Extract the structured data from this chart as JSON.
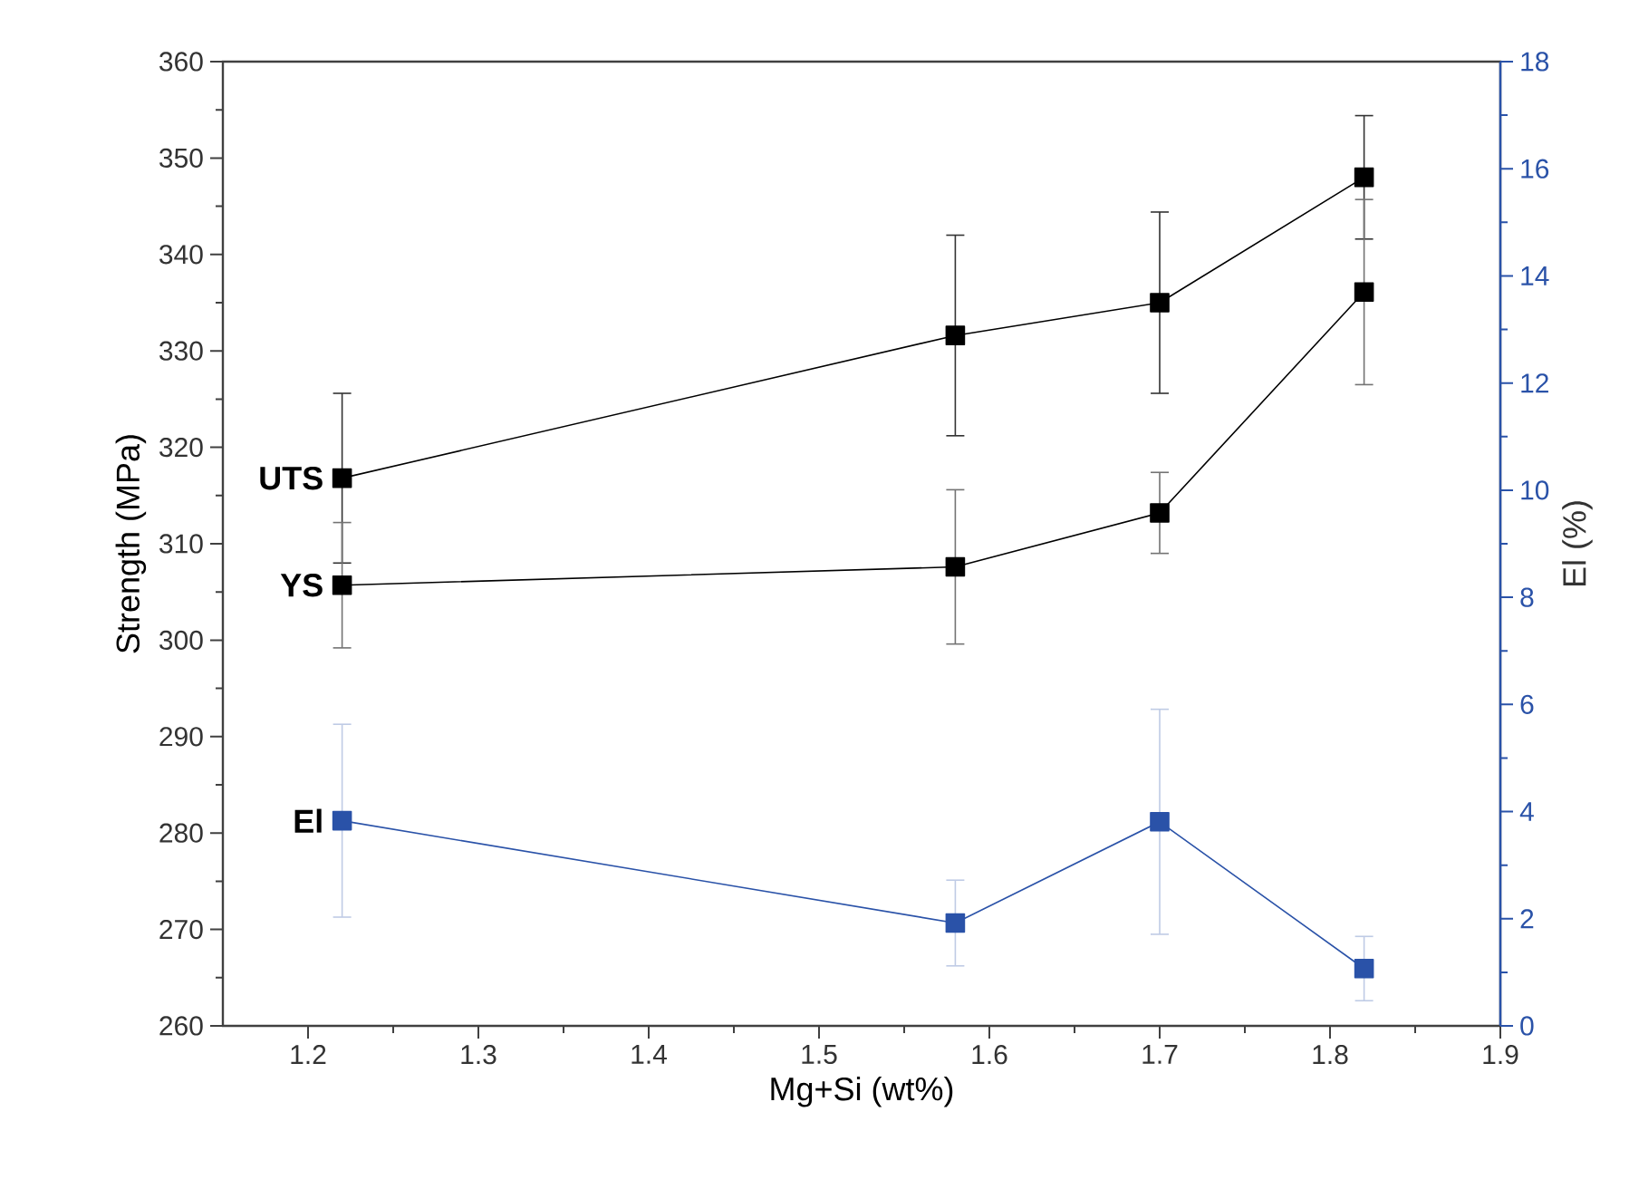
{
  "chart_data": {
    "type": "line",
    "xlabel": "Mg+Si (wt%)",
    "ylabel": "Strength (MPa)",
    "y2label": "El (%)",
    "x": [
      1.22,
      1.58,
      1.7,
      1.82
    ],
    "xlim": [
      1.15,
      1.9
    ],
    "xticks": [
      1.2,
      1.3,
      1.4,
      1.5,
      1.6,
      1.7,
      1.8,
      1.9
    ],
    "ylim": [
      260,
      360
    ],
    "yticks": [
      260,
      270,
      280,
      290,
      300,
      310,
      320,
      330,
      340,
      350,
      360
    ],
    "y2lim": [
      0,
      18
    ],
    "y2ticks": [
      0,
      2,
      4,
      6,
      8,
      10,
      12,
      14,
      16,
      18
    ],
    "marker": "square",
    "line_style": "solid",
    "grid": false,
    "series": [
      {
        "name": "UTS",
        "color": "#000000",
        "values": [
          316.8,
          331.6,
          335.0,
          348.0
        ],
        "errors": [
          8.8,
          10.4,
          9.4,
          6.4
        ]
      },
      {
        "name": "YS",
        "color": "#000000",
        "values": [
          305.7,
          307.6,
          313.2,
          336.1
        ],
        "errors": [
          6.5,
          8.0,
          4.2,
          9.6
        ]
      },
      {
        "name": "El",
        "color": "#2a52a8",
        "axis": "y2",
        "values": [
          3.83,
          1.92,
          3.81,
          1.07
        ],
        "errors": [
          1.8,
          0.8,
          2.1,
          0.6
        ]
      }
    ]
  }
}
